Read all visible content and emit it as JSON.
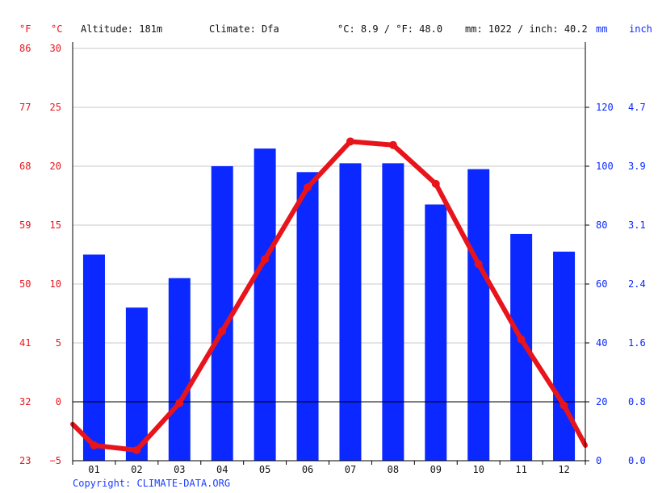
{
  "header": {
    "unit_f": "°F",
    "unit_c": "°C",
    "altitude": "Altitude: 181m",
    "climate": "Climate: Dfa",
    "temp_avg": "°C: 8.9 / °F: 48.0",
    "precip_total": "mm: 1022 / inch: 40.2",
    "unit_mm": "mm",
    "unit_inch": "inch"
  },
  "footer": {
    "copyright": "Copyright: CLIMATE-DATA.ORG"
  },
  "colors": {
    "temperature": "#e8141c",
    "precipitation": "#0a28ff",
    "grid": "#c8c8c8",
    "zero_line": "#000000"
  },
  "chart_data": {
    "type": "bar+line",
    "categories": [
      "01",
      "02",
      "03",
      "04",
      "05",
      "06",
      "07",
      "08",
      "09",
      "10",
      "11",
      "12"
    ],
    "series": [
      {
        "unit": "mm",
        "chart": "bar",
        "axis": "right",
        "values": [
          70,
          52,
          62,
          100,
          106,
          98,
          101,
          101,
          87,
          99,
          77,
          71
        ]
      },
      {
        "unit": "°C",
        "chart": "line",
        "axis": "left",
        "values": [
          -3.7,
          -4.1,
          -0.1,
          6.0,
          12.1,
          18.2,
          22.1,
          21.8,
          18.5,
          11.7,
          5.3,
          -0.3
        ],
        "edge_start": -1.9,
        "edge_end": -3.7
      }
    ],
    "y_left_c": {
      "min": -5,
      "max": 30,
      "ticks": [
        "30",
        "25",
        "20",
        "15",
        "10",
        "5",
        "0",
        "−5"
      ]
    },
    "y_left_f": {
      "ticks": [
        "86",
        "77",
        "68",
        "59",
        "50",
        "41",
        "32",
        "23"
      ]
    },
    "y_right_mm": {
      "min": 0,
      "max": 140,
      "ticks": [
        "120",
        "100",
        "80",
        "60",
        "40",
        "20",
        "0"
      ]
    },
    "y_right_inch": {
      "ticks": [
        "4.7",
        "3.9",
        "3.1",
        "2.4",
        "1.6",
        "0.8",
        "0.0"
      ]
    },
    "grid": true
  }
}
